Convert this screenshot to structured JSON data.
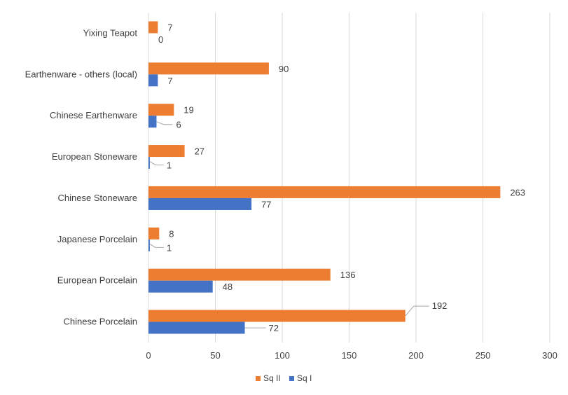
{
  "chart_data": {
    "type": "bar",
    "orientation": "horizontal",
    "categories": [
      "Chinese Porcelain",
      "European Porcelain",
      "Japanese Porcelain",
      "Chinese Stoneware",
      "European Stoneware",
      "Chinese Earthenware",
      "Earthenware - others (local)",
      "Yixing Teapot"
    ],
    "series": [
      {
        "name": "Sq II",
        "color": "#ED7D31",
        "values": [
          192,
          136,
          8,
          263,
          27,
          19,
          90,
          7
        ]
      },
      {
        "name": "Sq I",
        "color": "#4472C4",
        "values": [
          72,
          48,
          1,
          77,
          1,
          6,
          7,
          0
        ]
      }
    ],
    "xlim": [
      0,
      300
    ],
    "xticks": [
      0,
      50,
      100,
      150,
      200,
      250,
      300
    ],
    "grid": "vertical",
    "legend": "bottom",
    "title": "",
    "xlabel": "",
    "ylabel": ""
  }
}
